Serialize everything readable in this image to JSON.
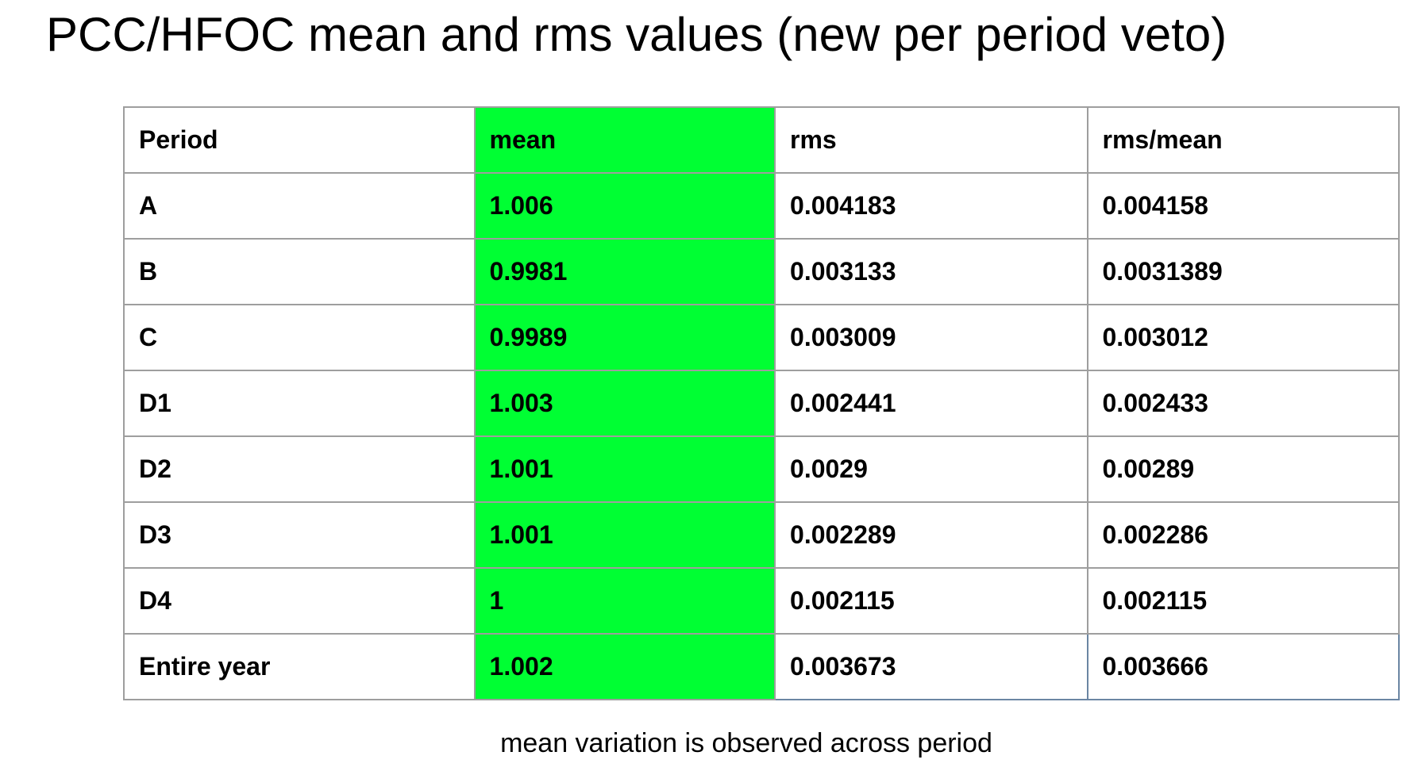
{
  "title": "PCC/HFOC mean and rms values (new per period veto)",
  "colors": {
    "mean_column_highlight": "#00ff33",
    "grid_border": "#9e9e9e"
  },
  "table": {
    "headers": [
      "Period",
      "mean",
      "rms",
      "rms/mean"
    ],
    "rows": [
      {
        "period": "A",
        "mean": "1.006",
        "rms": "0.004183",
        "ratio": "0.004158"
      },
      {
        "period": "B",
        "mean": "0.9981",
        "rms": "0.003133",
        "ratio": "0.0031389"
      },
      {
        "period": "C",
        "mean": "0.9989",
        "rms": "0.003009",
        "ratio": "0.003012"
      },
      {
        "period": "D1",
        "mean": "1.003",
        "rms": "0.002441",
        "ratio": "0.002433"
      },
      {
        "period": "D2",
        "mean": "1.001",
        "rms": "0.0029",
        "ratio": "0.00289"
      },
      {
        "period": "D3",
        "mean": "1.001",
        "rms": "0.002289",
        "ratio": "0.002286"
      },
      {
        "period": "D4",
        "mean": "1",
        "rms": "0.002115",
        "ratio": "0.002115"
      },
      {
        "period": "Entire year",
        "mean": "1.002",
        "rms": "0.003673",
        "ratio": "0.003666"
      }
    ]
  },
  "caption": "mean variation is observed across period"
}
